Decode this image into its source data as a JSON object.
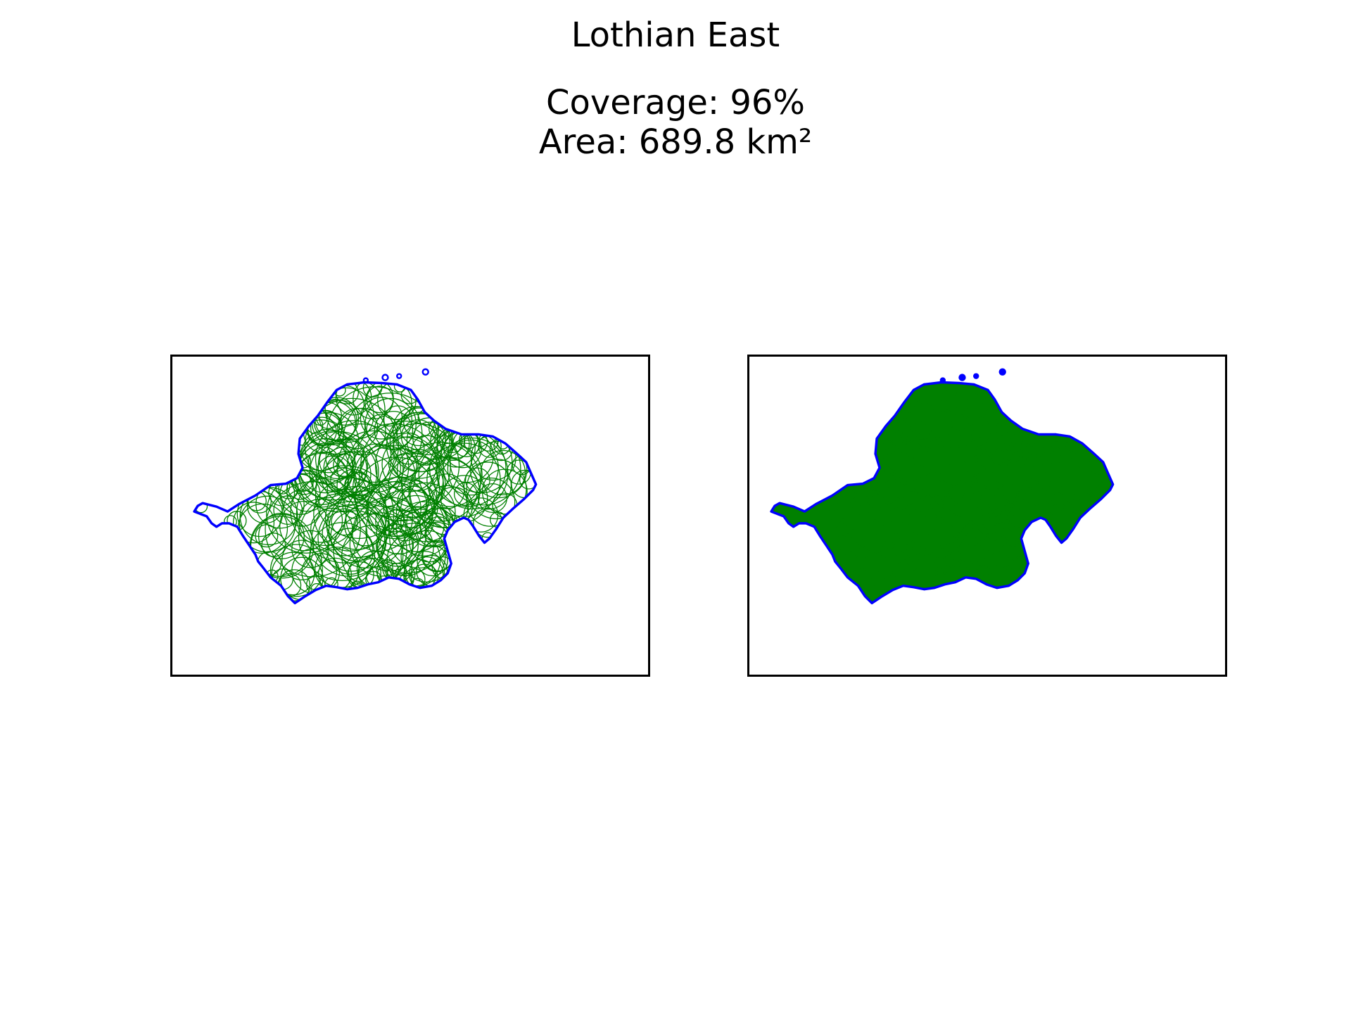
{
  "figure": {
    "title": "Lothian East",
    "coverage_text": "Coverage: 96%",
    "area_text": "Area: 689.8 km²"
  },
  "panels": [
    {
      "name": "outline-view",
      "style": "outline-circles"
    },
    {
      "name": "filled-view",
      "style": "filled-circles"
    }
  ],
  "colors": {
    "boundary": "#0000ff",
    "coverage": "#008000",
    "frame": "#000000",
    "background": "#ffffff"
  },
  "chart_data": {
    "type": "map",
    "title": "Lothian East",
    "subtitle": [
      "Coverage: 96%",
      "Area: 689.8 km²"
    ],
    "coverage_percent": 96,
    "area_km2": 689.8,
    "axes_ticks_visible": false
  }
}
